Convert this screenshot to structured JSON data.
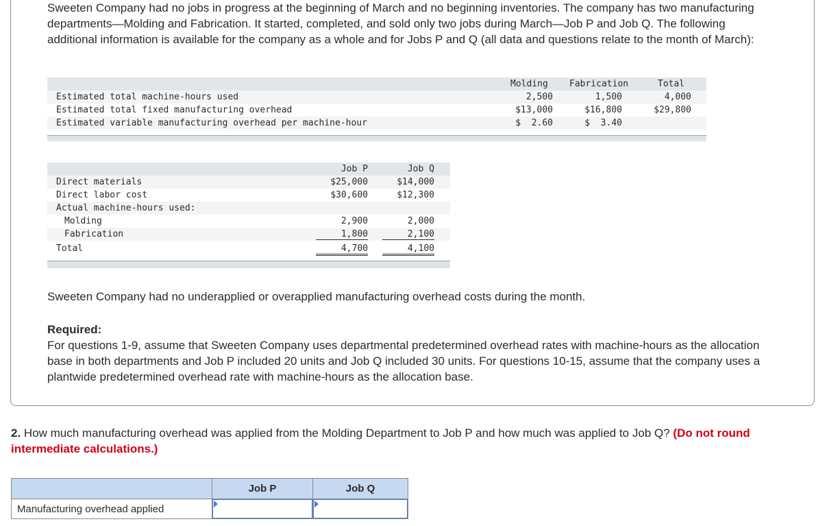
{
  "intro": "Sweeten Company had no jobs in progress at the beginning of March and no beginning inventories. The company has two manufacturing departments—Molding and Fabrication. It started, completed, and sold only two jobs during March—Job P and Job Q. The following additional information is available for the company as a whole and for Jobs P and Q (all data and questions relate to the month of March):",
  "dept_table": {
    "headers": [
      "Molding",
      "Fabrication",
      "Total"
    ],
    "rows": [
      {
        "label": "Estimated total machine-hours used",
        "values": [
          "2,500",
          "1,500",
          "4,000"
        ]
      },
      {
        "label": "Estimated total fixed manufacturing overhead",
        "values": [
          "$13,000",
          "$16,800",
          "$29,800"
        ]
      },
      {
        "label": "Estimated variable manufacturing overhead per machine-hour",
        "values": [
          "$  2.60",
          "$  3.40",
          ""
        ]
      }
    ]
  },
  "job_table": {
    "headers": [
      "Job P",
      "Job Q"
    ],
    "rows": [
      {
        "label": "Direct materials",
        "values": [
          "$25,000",
          "$14,000"
        ]
      },
      {
        "label": "Direct labor cost",
        "values": [
          "$30,600",
          "$12,300"
        ]
      },
      {
        "label": "Actual machine-hours used:",
        "values": [
          "",
          ""
        ]
      },
      {
        "label": "Molding",
        "values": [
          "2,900",
          "2,000"
        ]
      },
      {
        "label": "Fabrication",
        "values": [
          "1,800",
          "2,100"
        ]
      },
      {
        "label": "Total",
        "values": [
          "4,700",
          "4,100"
        ]
      }
    ]
  },
  "note": "Sweeten Company had no underapplied or overapplied manufacturing overhead costs during the month.",
  "required_title": "Required:",
  "required_text": "For questions 1-9, assume that Sweeten Company uses departmental predetermined overhead rates with machine-hours as the allocation base in both departments and Job P included 20 units and Job Q included 30 units. For questions 10-15, assume that the company uses a plantwide predetermined overhead rate with machine-hours as the allocation base.",
  "question": {
    "number": "2.",
    "text": " How much manufacturing overhead was applied from the Molding Department to Job P and how much was applied to Job Q? ",
    "hint": "(Do not round intermediate calculations.)"
  },
  "answer_table": {
    "headers": [
      "",
      "Job P",
      "Job Q"
    ],
    "row_label": "Manufacturing overhead applied",
    "values": [
      "",
      ""
    ]
  },
  "colors": {
    "header_fill": "#c6d9f1",
    "stripe": "#eef0f3",
    "bar": "#dfe3e8",
    "hint": "#d0021b",
    "border": "#7a8fa8"
  }
}
